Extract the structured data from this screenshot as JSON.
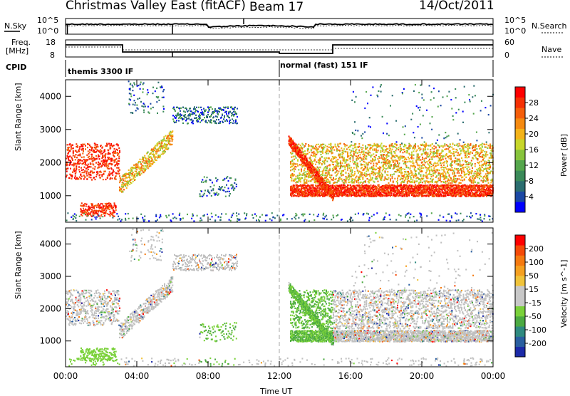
{
  "header": {
    "station": "Christmas Valley East (fitACF)",
    "beam": "Beam 17",
    "date": "14/Oct/2011"
  },
  "panels": {
    "nsky": {
      "label": "N.Sky",
      "y_top": "10^5",
      "y_bottom": "10^0",
      "right_label": "N.Search",
      "right_top": "10^5",
      "right_bottom": "10^0"
    },
    "freq": {
      "label_1": "Freq.",
      "label_2": "[MHz]",
      "y_top": "18",
      "y_bottom": "8",
      "right_label": "Nave",
      "right_top": "60",
      "right_bottom": "0"
    },
    "cpid": {
      "label": "CPID",
      "mode_1": "themis 3300 IF",
      "mode_2": "normal (fast) 151 IF"
    }
  },
  "chart_data": [
    {
      "type": "heatmap",
      "title": "",
      "xlabel": "",
      "ylabel": "Slant Range [km]",
      "xlim": [
        0,
        24
      ],
      "ylim": [
        200,
        4500
      ],
      "x_ticks": [
        0,
        4,
        8,
        12,
        16,
        20,
        24
      ],
      "y_ticks": [
        1000,
        2000,
        3000,
        4000
      ],
      "y_tick_labels": [
        "1000",
        "2000",
        "3000",
        "4000"
      ],
      "colorbar": {
        "label": "Power [dB]",
        "ticks": [
          "4",
          "8",
          "12",
          "16",
          "20",
          "24",
          "28"
        ],
        "colors": [
          "#0000ff",
          "#1b48a4",
          "#2b6d6f",
          "#3a8a59",
          "#55a64c",
          "#87c43c",
          "#c7d62a",
          "#f3b319",
          "#f58a10",
          "#f55e0a",
          "#f53004",
          "#ff0000"
        ]
      }
    },
    {
      "type": "heatmap",
      "title": "",
      "xlabel": "Time UT",
      "ylabel": "Slant Range [km]",
      "xlim": [
        0,
        24
      ],
      "ylim": [
        200,
        4500
      ],
      "x_ticks": [
        0,
        4,
        8,
        12,
        16,
        20,
        24
      ],
      "x_tick_labels": [
        "00:00",
        "04:00",
        "08:00",
        "12:00",
        "16:00",
        "20:00",
        "00:00"
      ],
      "y_ticks": [
        1000,
        2000,
        3000,
        4000
      ],
      "y_tick_labels": [
        "1000",
        "2000",
        "3000",
        "4000"
      ],
      "colorbar": {
        "label": "Velocity [m s^-1]",
        "ticks": [
          "200",
          "100",
          "50",
          "15",
          "-15",
          "-50",
          "-100",
          "-200"
        ],
        "colors": [
          "#1c2aa8",
          "#2a5fa0",
          "#2f8a80",
          "#4caa42",
          "#7ad13a",
          "#c8c8c8",
          "#c8c8c8",
          "#f0c33a",
          "#f5a020",
          "#f57a10",
          "#f54a08",
          "#ff0000"
        ]
      }
    }
  ],
  "colors": {
    "grey_scatter": "#c0c0c0",
    "cpid_divider": "#aaaaaa"
  }
}
